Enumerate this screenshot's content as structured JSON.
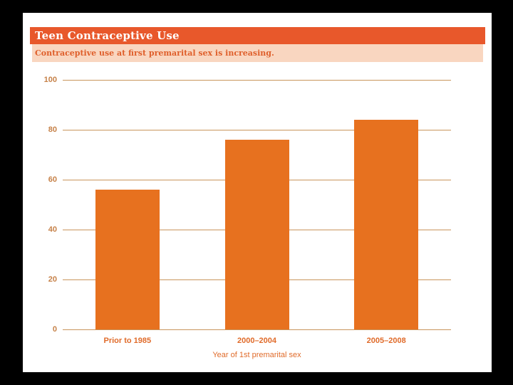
{
  "slide": {
    "title": "Teen Contraceptive Use",
    "subtitle": "Contraceptive use at first premarital sex is increasing.",
    "colors": {
      "header_bg": "#E8582B",
      "header_text": "#FFFFFF",
      "subtitle_bg": "#F9D6C0",
      "subtitle_text": "#DF5F2B",
      "bar": "#E7711F",
      "gridline": "#C9955C",
      "y_label": "#C68148",
      "x_label": "#E06B2A"
    }
  },
  "chart_data": {
    "type": "bar",
    "categories": [
      "Prior to 1985",
      "2000–2004",
      "2005–2008"
    ],
    "values": [
      56,
      76,
      84
    ],
    "title": "Teen Contraceptive Use",
    "xlabel": "Year of 1st premarital sex",
    "ylabel": "",
    "ylim": [
      0,
      100
    ],
    "yticks": [
      0,
      20,
      40,
      60,
      80,
      100
    ],
    "grid": true,
    "legend": false,
    "bar_color": "#E7711F"
  }
}
